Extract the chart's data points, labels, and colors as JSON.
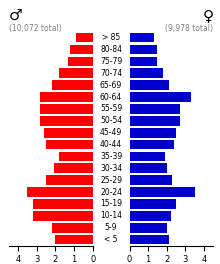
{
  "age_labels": [
    "< 5",
    "5-9",
    "10-14",
    "15-19",
    "20-24",
    "25-29",
    "30-34",
    "35-39",
    "40-44",
    "45-49",
    "50-54",
    "55-59",
    "60-64",
    "65-69",
    "70-74",
    "75-79",
    "80-84",
    "> 85"
  ],
  "male_pct": [
    2.0,
    2.2,
    3.2,
    3.2,
    3.5,
    2.5,
    2.1,
    1.8,
    2.5,
    2.6,
    2.8,
    2.8,
    2.8,
    2.2,
    1.8,
    1.3,
    1.2,
    0.9
  ],
  "female_pct": [
    2.1,
    2.0,
    2.2,
    2.5,
    3.5,
    2.3,
    2.0,
    1.9,
    2.4,
    2.5,
    2.7,
    2.7,
    3.3,
    2.1,
    1.8,
    1.5,
    1.5,
    1.3
  ],
  "male_color": "#ff0000",
  "female_color": "#0000cc",
  "male_symbol": "♂",
  "female_symbol": "♀",
  "male_total": "(10,072 total)",
  "female_total": "(9,978 total)",
  "pct_label": "%",
  "xlim": 4.5,
  "tick_fontsize": 6,
  "age_fontsize": 5.5,
  "bar_height": 0.82,
  "background_color": "#ffffff"
}
